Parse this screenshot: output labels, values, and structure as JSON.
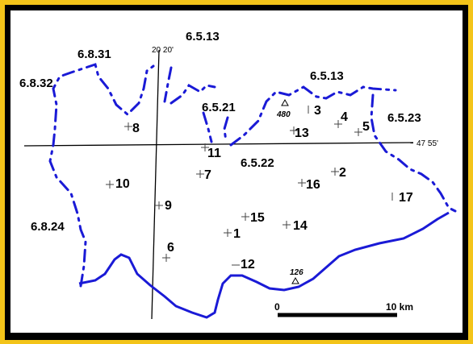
{
  "colors": {
    "frame_outer": "#f3c419",
    "frame_inner": "#000000",
    "map_background": "#ffffff",
    "boundary": "#1a1ad6",
    "river": "#1a1ad6",
    "gridline": "#000000",
    "text": "#000000"
  },
  "grid": {
    "longitude_label": "20 20'",
    "latitude_label": "47 55'"
  },
  "boundary_labels": {
    "b_6_8_31": "6.8.31",
    "b_6_8_32": "6.8.32",
    "b_6_5_13_top": "6.5.13",
    "b_6_5_21": "6.5.21",
    "b_6_5_13_right": "6.5.13",
    "b_6_5_23": "6.5.23",
    "b_6_5_22": "6.5.22",
    "b_6_8_24": "6.8.24"
  },
  "sites": {
    "s1": "1",
    "s2": "2",
    "s3": "3",
    "s4": "4",
    "s5": "5",
    "s6": "6",
    "s7": "7",
    "s8": "8",
    "s9": "9",
    "s10": "10",
    "s11": "11",
    "s12": "12",
    "s13": "13",
    "s14": "14",
    "s15": "15",
    "s16": "16",
    "s17": "17"
  },
  "elevations": {
    "peak_north": "480",
    "peak_south": "126"
  },
  "scale_bar": {
    "start_label": "0",
    "end_label": "10 km"
  }
}
